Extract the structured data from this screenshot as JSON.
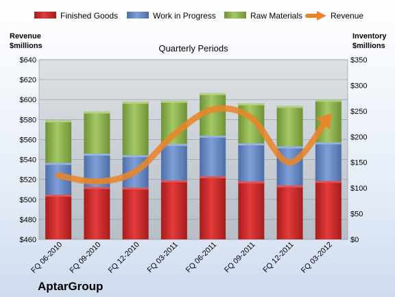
{
  "chart_data": {
    "type": "bar",
    "subtype": "stacked-bar-with-line",
    "title": "Quarterly Periods",
    "brand": "AptarGroup",
    "categories": [
      "FQ 06-2010",
      "FQ 09-2010",
      "FQ 12-2010",
      "FQ 03-2011",
      "FQ 06-2011",
      "FQ 09-2011",
      "FQ 12-2011",
      "FQ 03-2012"
    ],
    "left_axis": {
      "label_line1": "Revenue",
      "label_line2": "$millions",
      "ylim": [
        460,
        640
      ],
      "ticks": [
        "$460",
        "$480",
        "$500",
        "$520",
        "$540",
        "$560",
        "$580",
        "$600",
        "$620",
        "$640"
      ]
    },
    "right_axis": {
      "label_line1": "Inventory",
      "label_line2": "$millions",
      "ylim": [
        0,
        350
      ],
      "ticks": [
        "$0",
        "$50",
        "$100",
        "$150",
        "$200",
        "$250",
        "$300",
        "$350"
      ]
    },
    "series": [
      {
        "name": "Finished Goods",
        "axis": "right",
        "color": "#d42a2a",
        "values": [
          87,
          102,
          101,
          115,
          123,
          113,
          105,
          114
        ]
      },
      {
        "name": "Work in Progress",
        "axis": "right",
        "color": "#6e8fcc",
        "values": [
          62,
          65,
          63,
          71,
          79,
          74,
          76,
          75
        ]
      },
      {
        "name": "Raw Materials",
        "axis": "right",
        "color": "#93b856",
        "values": [
          83,
          82,
          104,
          84,
          83,
          78,
          79,
          83
        ]
      },
      {
        "name": "Revenue",
        "axis": "left",
        "type": "line",
        "color": "#e8852a",
        "values": [
          524,
          518,
          528,
          565,
          590,
          582,
          537,
          582
        ]
      }
    ],
    "legend": {
      "placement": "top"
    },
    "grid": true
  }
}
